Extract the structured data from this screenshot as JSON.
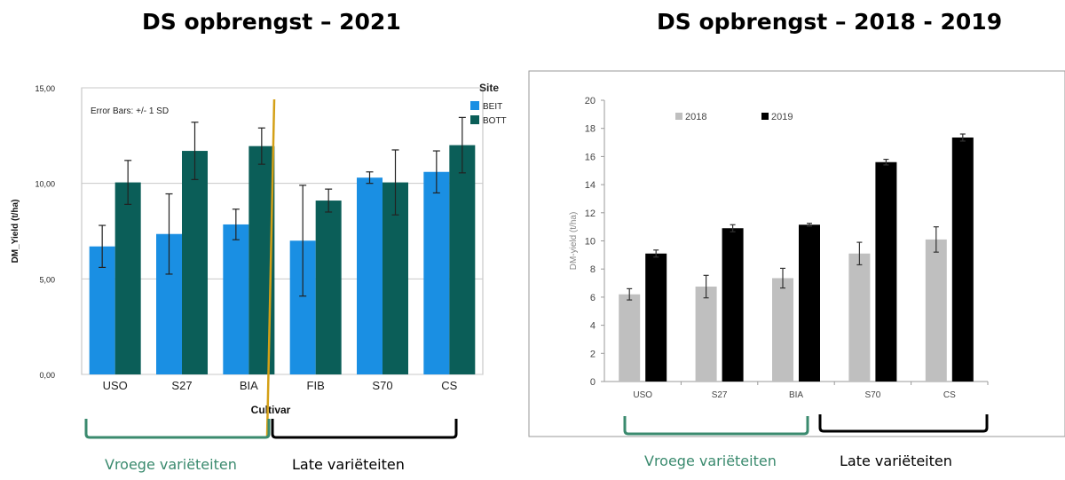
{
  "titles": {
    "left": "DS opbrengst – 2021",
    "right": "DS opbrengst – 2018 - 2019"
  },
  "groups": {
    "early": "Vroege variëteiten",
    "late": "Late variëteiten"
  },
  "colors": {
    "beit": "#1a8fe3",
    "bott": "#0b5e58",
    "y2018": "#bfbfbf",
    "y2019": "#000000",
    "divider": "#d4a017",
    "early_bracket": "#3a8a6e",
    "late_bracket": "#000000"
  },
  "chart_data": [
    {
      "type": "bar",
      "xlabel": "Cultivar",
      "ylabel": "DM_Yield (t/ha)",
      "ylim": [
        0,
        15
      ],
      "yticks": [
        "0,00",
        "5,00",
        "10,00",
        "15,00"
      ],
      "ytick_values": [
        0,
        5,
        10,
        15
      ],
      "grid": true,
      "annotation": "Error Bars: +/- 1 SD",
      "legend_title": "Site",
      "legend_position": "top-right",
      "categories": [
        "USO",
        "S27",
        "BIA",
        "FIB",
        "S70",
        "CS"
      ],
      "series": [
        {
          "name": "BEIT",
          "values": [
            6.7,
            7.35,
            7.85,
            7.0,
            10.3,
            10.6
          ],
          "sd": [
            1.1,
            2.1,
            0.8,
            2.9,
            0.3,
            1.1
          ]
        },
        {
          "name": "BOTT",
          "values": [
            10.05,
            11.7,
            11.95,
            9.1,
            10.05,
            12.0
          ],
          "sd": [
            1.15,
            1.5,
            0.95,
            0.6,
            1.7,
            1.45
          ]
        }
      ]
    },
    {
      "type": "bar",
      "xlabel": "",
      "ylabel": "DM-yield (t/ha)",
      "ylim": [
        0,
        20
      ],
      "yticks": [
        "0",
        "2",
        "4",
        "6",
        "8",
        "10",
        "12",
        "14",
        "16",
        "18",
        "20"
      ],
      "ytick_values": [
        0,
        2,
        4,
        6,
        8,
        10,
        12,
        14,
        16,
        18,
        20
      ],
      "grid": false,
      "legend_position": "top-left",
      "categories": [
        "USO",
        "S27",
        "BIA",
        "S70",
        "CS"
      ],
      "series": [
        {
          "name": "2018",
          "values": [
            6.2,
            6.75,
            7.35,
            9.1,
            10.1
          ],
          "err": [
            0.4,
            0.8,
            0.7,
            0.8,
            0.9
          ]
        },
        {
          "name": "2019",
          "values": [
            9.1,
            10.9,
            11.15,
            15.6,
            17.35
          ],
          "err": [
            0.25,
            0.25,
            0.1,
            0.2,
            0.25
          ]
        }
      ]
    }
  ]
}
